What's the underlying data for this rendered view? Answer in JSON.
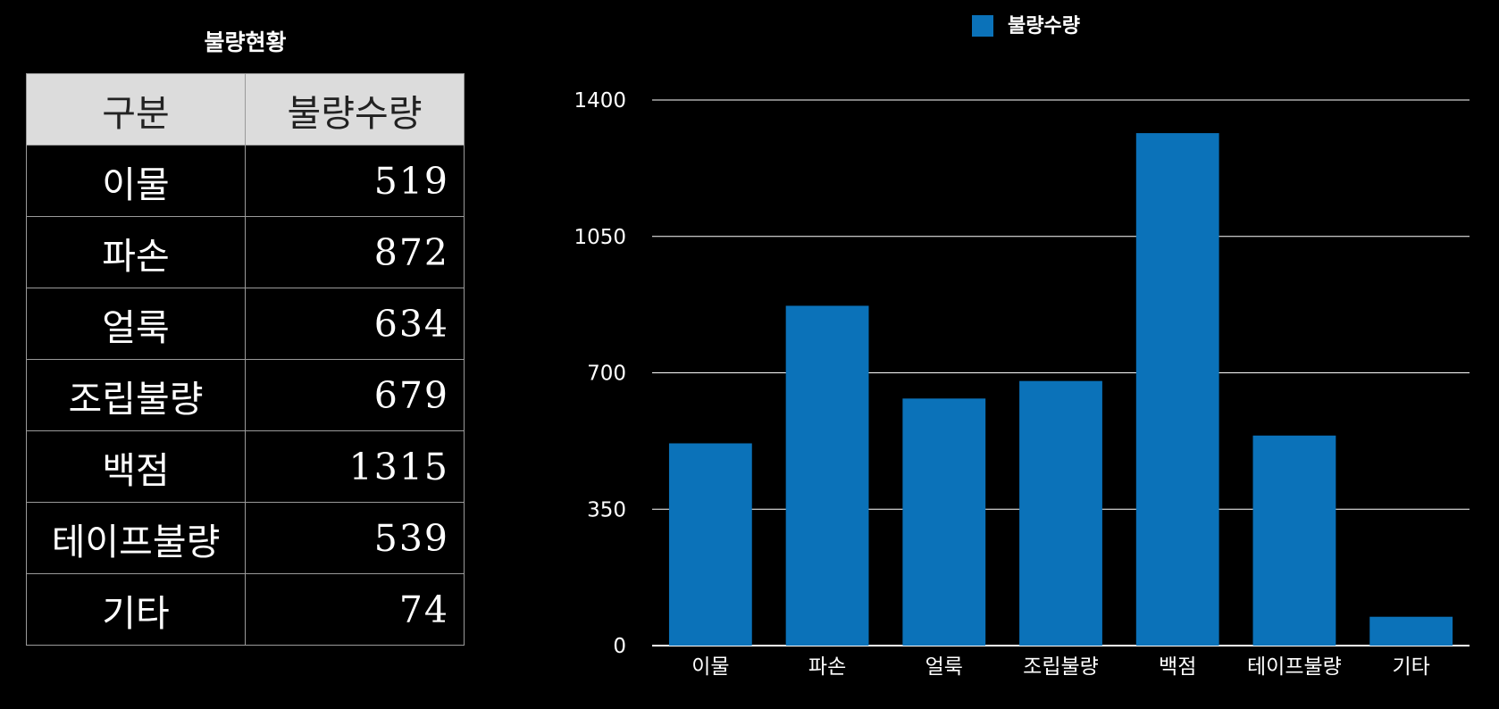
{
  "table": {
    "title": "불량현황",
    "headers": [
      "구분",
      "불량수량"
    ],
    "rows": [
      [
        "이물",
        "519"
      ],
      [
        "파손",
        "872"
      ],
      [
        "얼룩",
        "634"
      ],
      [
        "조립불량",
        "679"
      ],
      [
        "백점",
        "1315"
      ],
      [
        "테이프불량",
        "539"
      ],
      [
        "기타",
        "74"
      ]
    ]
  },
  "chart_data": {
    "type": "bar",
    "categories": [
      "이물",
      "파손",
      "얼룩",
      "조립불량",
      "백점",
      "테이프불량",
      "기타"
    ],
    "series": [
      {
        "name": "불량수량",
        "values": [
          519,
          872,
          634,
          679,
          1315,
          539,
          74
        ]
      }
    ],
    "ylim": [
      0,
      1400
    ],
    "yticks": [
      0,
      350,
      700,
      1050,
      1400
    ],
    "grid": true,
    "legend": "top-center",
    "bar_color": "#0b72b9",
    "xlabel": "",
    "ylabel": ""
  }
}
